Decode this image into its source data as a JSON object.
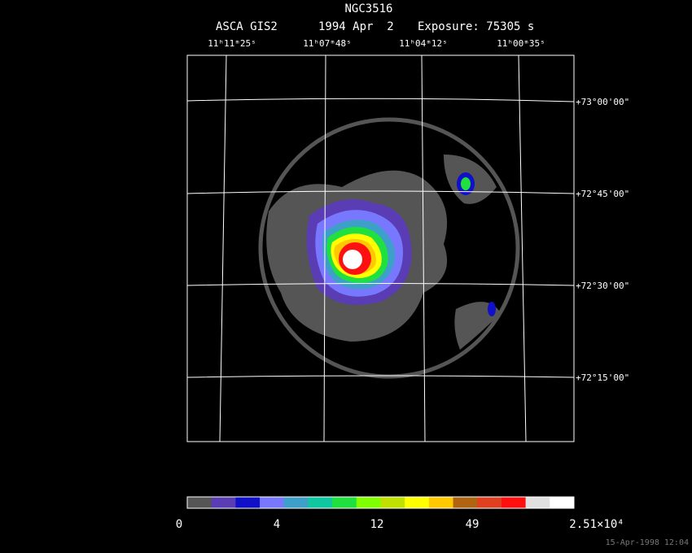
{
  "header": {
    "object": "NGC3516",
    "instrument": "ASCA GIS2",
    "date": "1994 Apr  2",
    "exposure": "Exposure: 75305 s"
  },
  "ra_labels": [
    "11ʰ11ᵐ25ˢ",
    "11ʰ07ᵐ48ˢ",
    "11ʰ04ᵐ12ˢ",
    "11ʰ00ᵐ35ˢ"
  ],
  "dec_labels": [
    "+73°00'00\"",
    "+72°45'00\"",
    "+72°30'00\"",
    "+72°15'00\""
  ],
  "colorbar": {
    "colors": [
      "#555555",
      "#5a3cb4",
      "#1010c8",
      "#7878ff",
      "#3ca0c8",
      "#10c8a0",
      "#20e040",
      "#80ff00",
      "#c0e000",
      "#ffff00",
      "#ffc800",
      "#b06410",
      "#e04020",
      "#ff1010",
      "#e0e0e0",
      "#ffffff"
    ],
    "labels": [
      "0",
      "4",
      "12",
      "49",
      "2.51×10⁴"
    ]
  },
  "timestamp": "15-Apr-1998 12:04"
}
